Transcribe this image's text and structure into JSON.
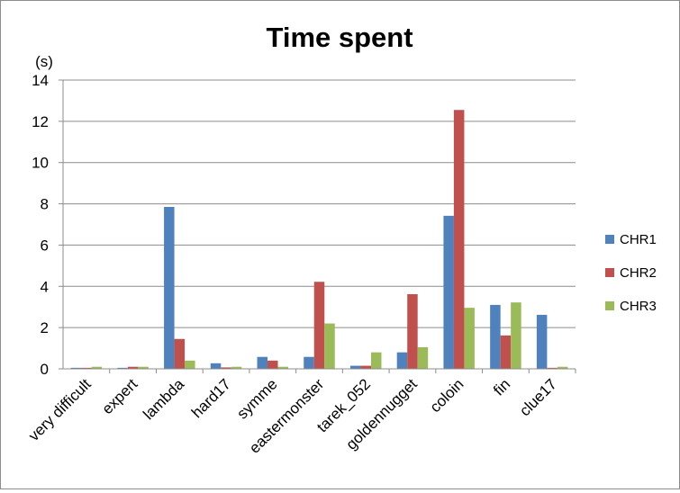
{
  "chart_data": {
    "type": "bar",
    "title": "Time spent",
    "ylabel": "(s)",
    "xlabel": "",
    "ylim": [
      0,
      14
    ],
    "yticks": [
      0,
      2,
      4,
      6,
      8,
      10,
      12,
      14
    ],
    "grid": true,
    "legend_position": "right",
    "categories": [
      "very difficult",
      "expert",
      "lambda",
      "hard17",
      "symme",
      "eastermonster",
      "tarek_052",
      "goldennugget",
      "coloin",
      "fin",
      "clue17"
    ],
    "series": [
      {
        "name": "CHR1",
        "color": "#4f81bd",
        "values": [
          0.05,
          0.05,
          7.85,
          0.27,
          0.58,
          0.58,
          0.15,
          0.8,
          7.42,
          3.1,
          2.62
        ]
      },
      {
        "name": "CHR2",
        "color": "#c0504d",
        "values": [
          0.05,
          0.1,
          1.45,
          0.07,
          0.4,
          4.22,
          0.15,
          3.62,
          12.55,
          1.62,
          0.05
        ]
      },
      {
        "name": "CHR3",
        "color": "#9bbb59",
        "values": [
          0.1,
          0.1,
          0.4,
          0.1,
          0.1,
          2.2,
          0.8,
          1.05,
          2.96,
          3.22,
          0.1
        ]
      }
    ]
  }
}
